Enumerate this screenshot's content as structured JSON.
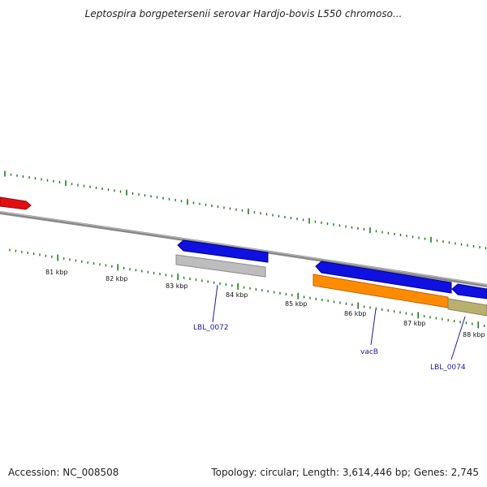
{
  "header": {
    "title": "Leptospira borgpetersenii serovar Hardjo-bovis L550 chromoso..."
  },
  "footer": {
    "accession": "Accession: NC_008508",
    "summary": "Topology: circular; Length: 3,614,446 bp; Genes: 2,745"
  },
  "ruler": {
    "kbp_labels": [
      "81 kbp",
      "82 kbp",
      "83 kbp",
      "84 kbp",
      "85 kbp",
      "86 kbp",
      "87 kbp",
      "88 kbp"
    ]
  },
  "genes": [
    {
      "label": "LBL_0072"
    },
    {
      "label": "vacB"
    },
    {
      "label": "LBL_0074"
    }
  ],
  "colors": {
    "backbone": "#7a7a7a",
    "tick": "#1e7a1e",
    "forward_cds": "#1010e0",
    "reverse_cds_gray": "#b8b8b8",
    "reverse_cds_orange": "#ff8c00",
    "reverse_cds_olive": "#b8b070",
    "red_feature": "#e01010",
    "label_line": "#1a1aa0"
  }
}
